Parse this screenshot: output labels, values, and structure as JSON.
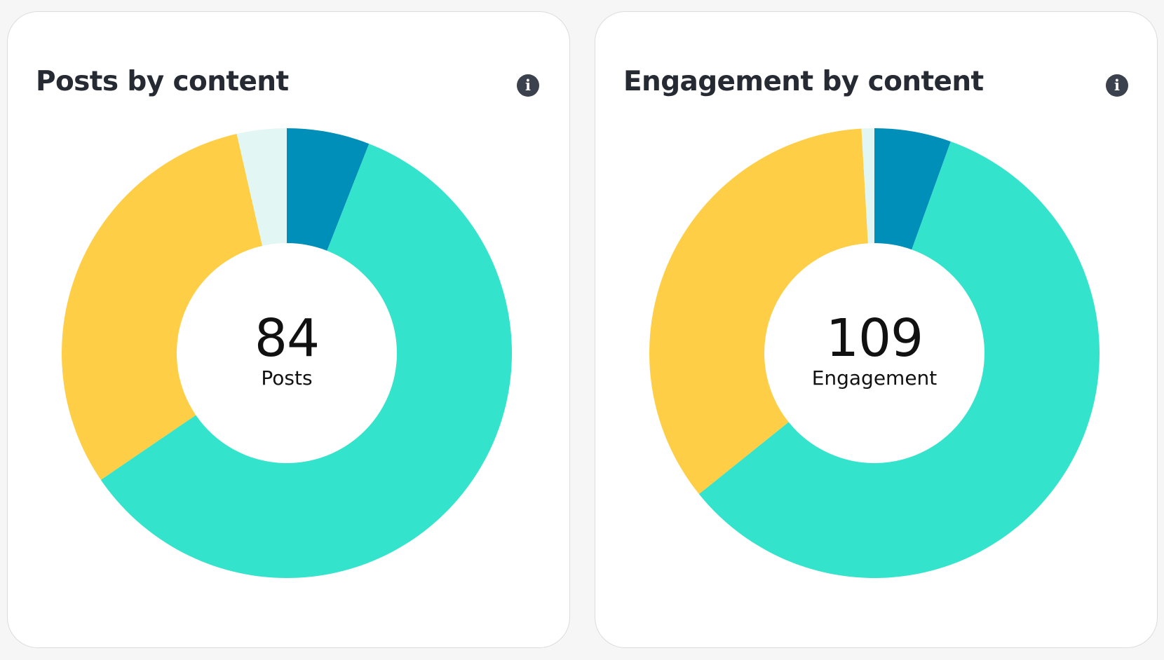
{
  "colors": {
    "segment_blue": "#008fb8",
    "segment_teal": "#33e3cb",
    "segment_yellow": "#fecf46",
    "segment_pale": "#e2f7f4",
    "title_text": "#262a33",
    "info_icon_bg": "#3c424d"
  },
  "cards": [
    {
      "title": "Posts by content",
      "info_icon": "info-circle-icon",
      "info_glyph": "i",
      "center_value": "84",
      "center_label": "Posts"
    },
    {
      "title": "Engagement by content",
      "info_icon": "info-circle-icon",
      "info_glyph": "i",
      "center_value": "109",
      "center_label": "Engagement"
    }
  ],
  "chart_data": [
    {
      "type": "pie",
      "title": "Posts by content",
      "center_text": "84",
      "center_label": "Posts",
      "series": [
        {
          "value": 5,
          "color": "#008fb8"
        },
        {
          "value": 50,
          "color": "#33e3cb"
        },
        {
          "value": 26,
          "color": "#fecf46"
        },
        {
          "value": 3,
          "color": "#e2f7f4"
        }
      ],
      "total": 84
    },
    {
      "type": "pie",
      "title": "Engagement by content",
      "center_text": "109",
      "center_label": "Engagement",
      "series": [
        {
          "value": 6,
          "color": "#008fb8"
        },
        {
          "value": 64,
          "color": "#33e3cb"
        },
        {
          "value": 38,
          "color": "#fecf46"
        },
        {
          "value": 1,
          "color": "#e2f7f4"
        }
      ],
      "total": 109
    }
  ]
}
